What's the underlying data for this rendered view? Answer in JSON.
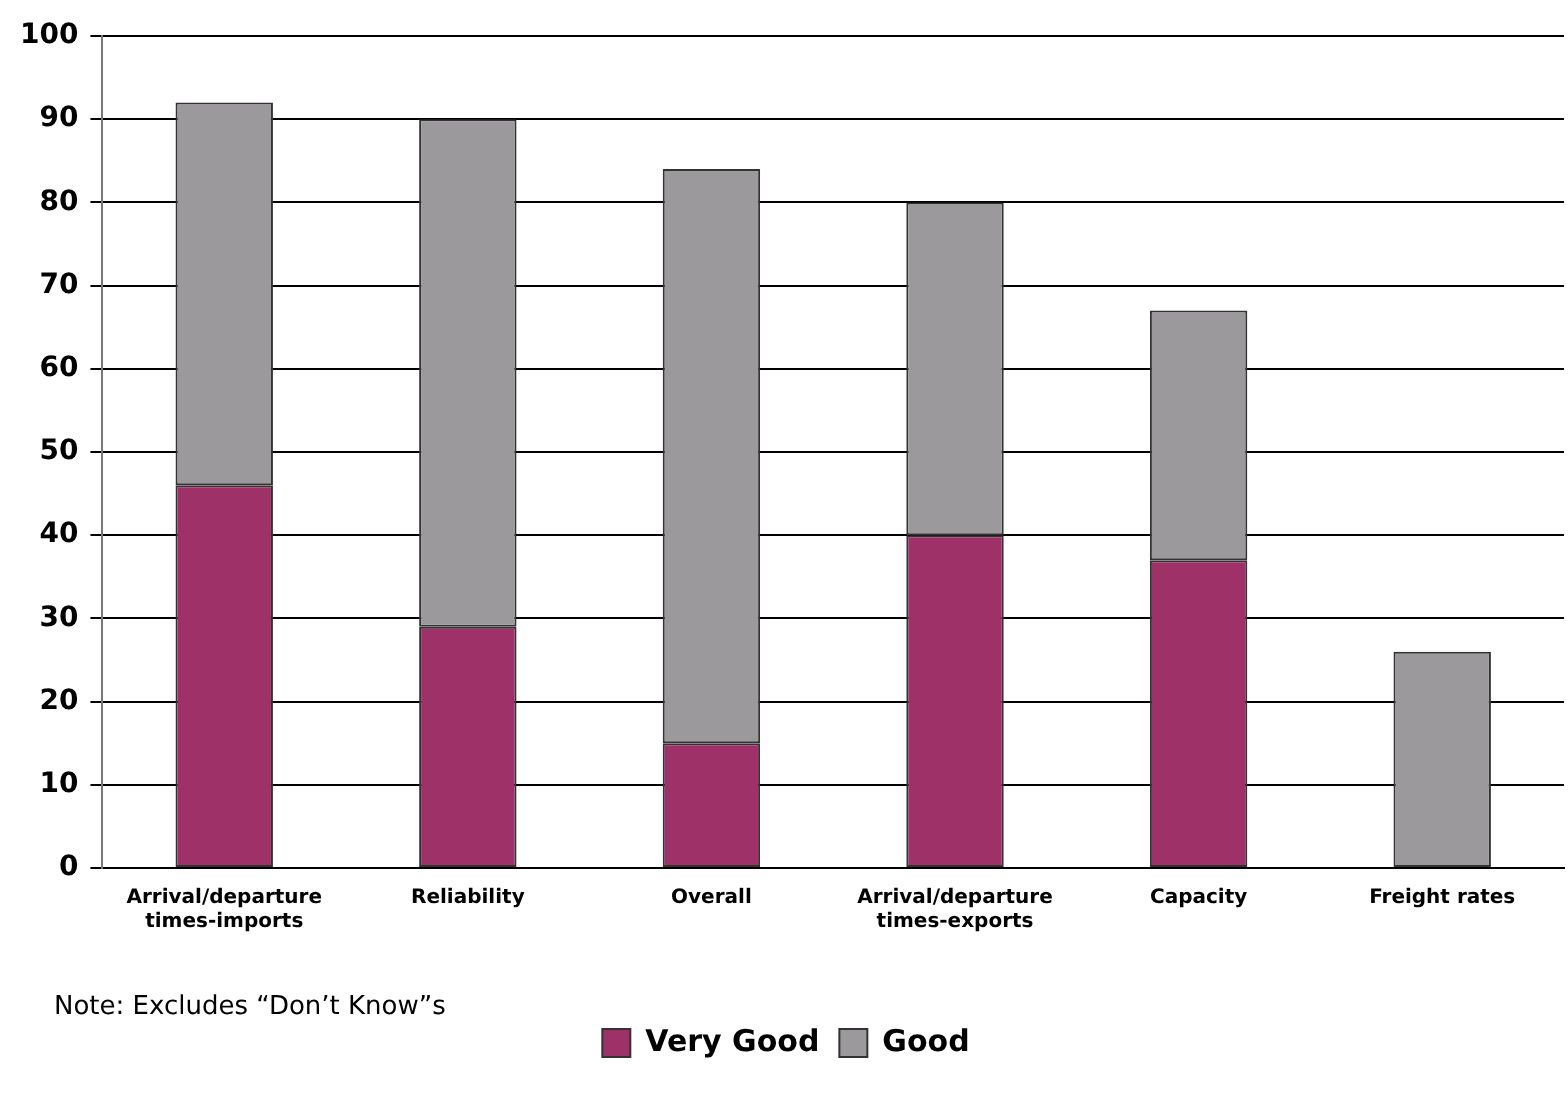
{
  "chart_data": {
    "type": "bar",
    "stacked": true,
    "categories": [
      "Arrival/departure times-imports",
      "Reliability",
      "Overall",
      "Arrival/departure times-exports",
      "Capacity",
      "Freight rates"
    ],
    "series": [
      {
        "name": "Very Good",
        "color": "#9e3268",
        "values": [
          46,
          29,
          15,
          40,
          37,
          null
        ]
      },
      {
        "name": "Good",
        "color": "#9b999b",
        "values": [
          46,
          61,
          69,
          40,
          30,
          26
        ]
      }
    ],
    "ylim": [
      0,
      100
    ],
    "yticks": [
      0,
      10,
      20,
      30,
      40,
      50,
      60,
      70,
      80,
      90,
      100
    ],
    "grid": "y",
    "legend": "bottom",
    "annotations": [
      "Note: Excludes “Don’t Know”s"
    ]
  }
}
